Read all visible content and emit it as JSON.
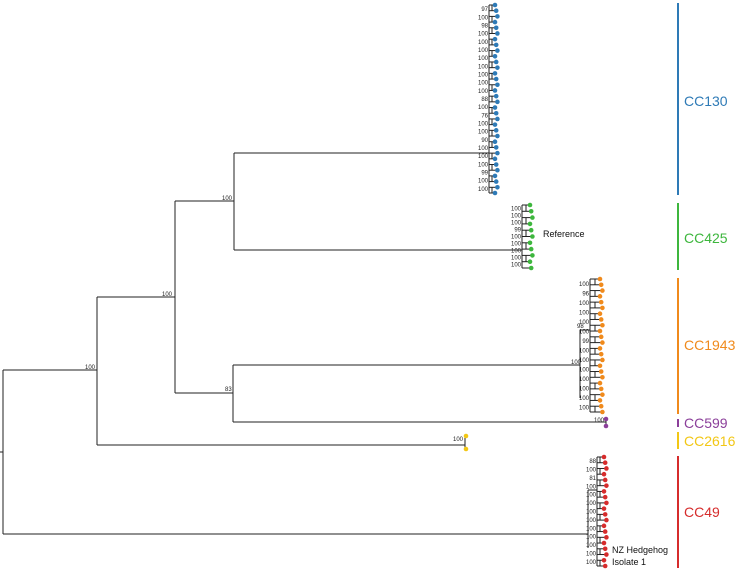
{
  "colors": {
    "branch": "#222222",
    "CC130": "#2e7ab6",
    "CC425": "#3db63d",
    "CC1943": "#f08a1c",
    "CC599": "#8b3f9a",
    "CC2616": "#f2c715",
    "CC49": "#d62c2c"
  },
  "clades": [
    {
      "id": "CC130",
      "label": "CC130",
      "color": "#2e7ab6"
    },
    {
      "id": "CC425",
      "label": "CC425",
      "color": "#3db63d"
    },
    {
      "id": "CC1943",
      "label": "CC1943",
      "color": "#f08a1c"
    },
    {
      "id": "CC599",
      "label": "CC599",
      "color": "#8b3f9a"
    },
    {
      "id": "CC2616",
      "label": "CC2616",
      "color": "#f2c715"
    },
    {
      "id": "CC49",
      "label": "CC49",
      "color": "#d62c2c"
    }
  ],
  "annotations": {
    "reference": "Reference",
    "hedgehog_line1": "NZ Hedgehog",
    "hedgehog_line2": "Isolate 1"
  },
  "bootstrap": {
    "root": "100",
    "main": "100",
    "cc130_cc425": "100",
    "cc1943_cc599": "83",
    "cc1943": "100",
    "cc1943_sub": "98",
    "cc2616": "100",
    "cc599": "100",
    "cc130_tips": [
      "97",
      "100",
      "98",
      "100",
      "100",
      "100",
      "100",
      "100",
      "100",
      "100",
      "100",
      "88",
      "100",
      "76",
      "100",
      "100",
      "90",
      "100",
      "100",
      "100",
      "99",
      "100",
      "100"
    ],
    "cc425_tips": [
      "100",
      "100",
      "100",
      "99",
      "100",
      "100",
      "100",
      "100",
      "100"
    ],
    "cc1943_tips": [
      "100",
      "96",
      "100",
      "100",
      "100",
      "100",
      "99",
      "100",
      "100",
      "100",
      "100",
      "100",
      "100",
      "100"
    ],
    "cc49_tips": [
      "88",
      "100",
      "81",
      "100",
      "100",
      "100",
      "100",
      "100",
      "100",
      "100",
      "100",
      "100",
      "100"
    ]
  }
}
